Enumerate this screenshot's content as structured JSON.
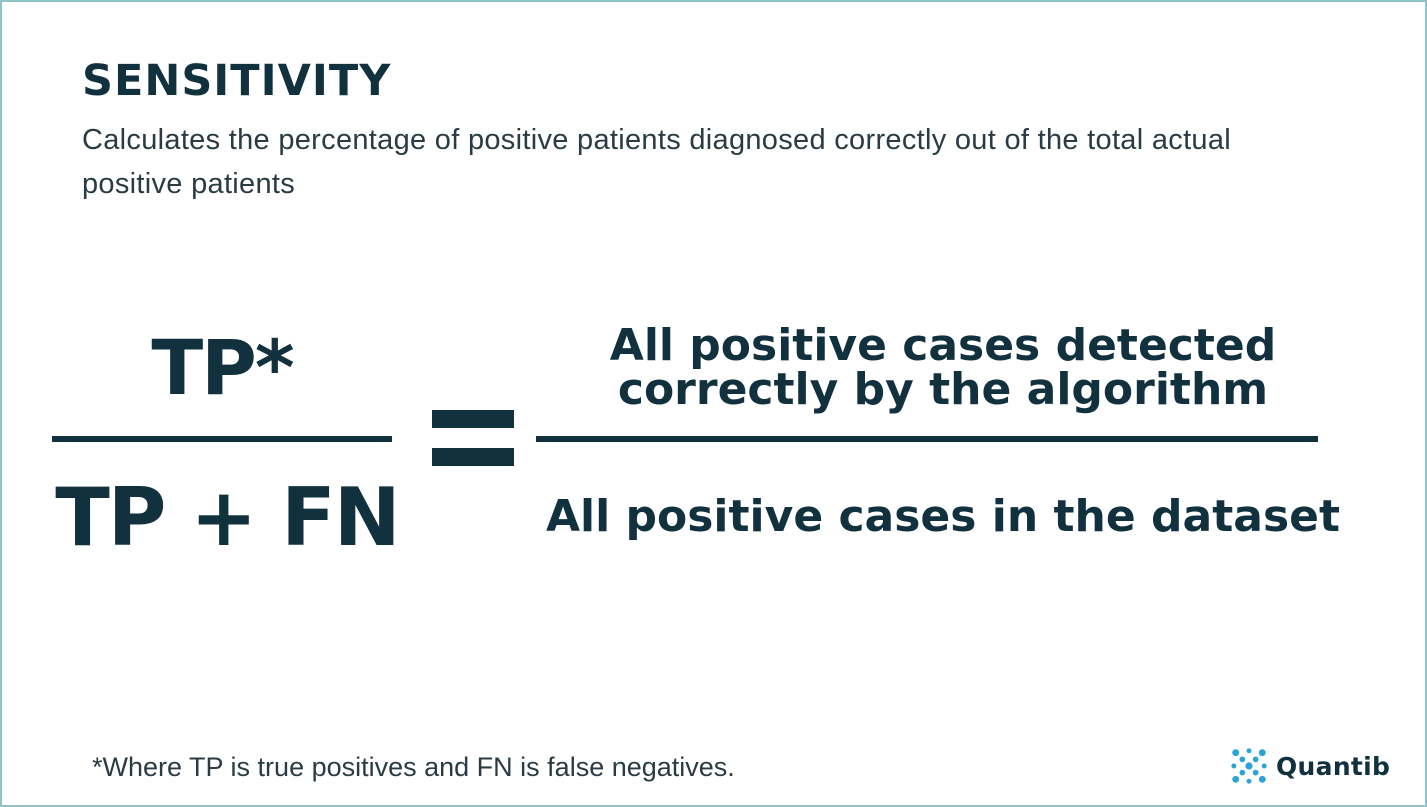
{
  "slide": {
    "title": "SENSITIVITY",
    "subtitle": "Calculates the percentage of positive patients diagnosed correctly out of the total actual positive patients"
  },
  "formula": {
    "left_numerator": "TP*",
    "left_denominator": "TP + FN",
    "equals_sign": "=",
    "right_numerator": "All positive cases detected correctly by the algorithm",
    "right_denominator": "All positive cases in the dataset"
  },
  "footnote": "*Where TP is true positives and FN is false negatives.",
  "brand": {
    "name": "Quantib",
    "logo_icon": "quantib-dots-logo-icon"
  },
  "colors": {
    "text_dark": "#12313f",
    "frame_border": "#8fc3c6",
    "logo_accent": "#2aa3d6"
  }
}
